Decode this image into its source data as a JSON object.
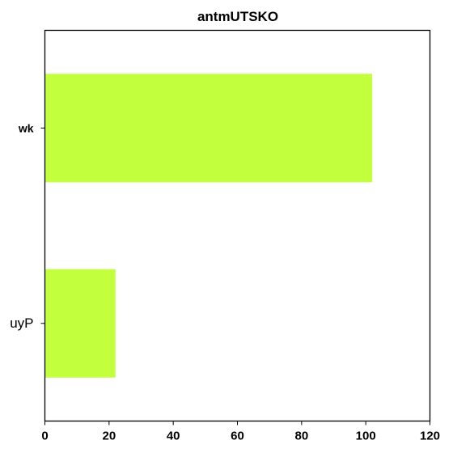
{
  "chart_data": {
    "type": "bar",
    "orientation": "horizontal",
    "title": "antmUTSKO",
    "xlabel": "",
    "ylabel": "",
    "categories": [
      "wk",
      "uyP"
    ],
    "values": [
      102,
      22
    ],
    "xlim": [
      0,
      120
    ],
    "xticks": [
      0,
      20,
      40,
      60,
      80,
      100,
      120
    ],
    "xtick_labels": [
      "0",
      "20",
      "40",
      "60",
      "80",
      "100",
      "120"
    ],
    "bar_color": "#c2ff3c",
    "grid": false,
    "legend": "none"
  }
}
